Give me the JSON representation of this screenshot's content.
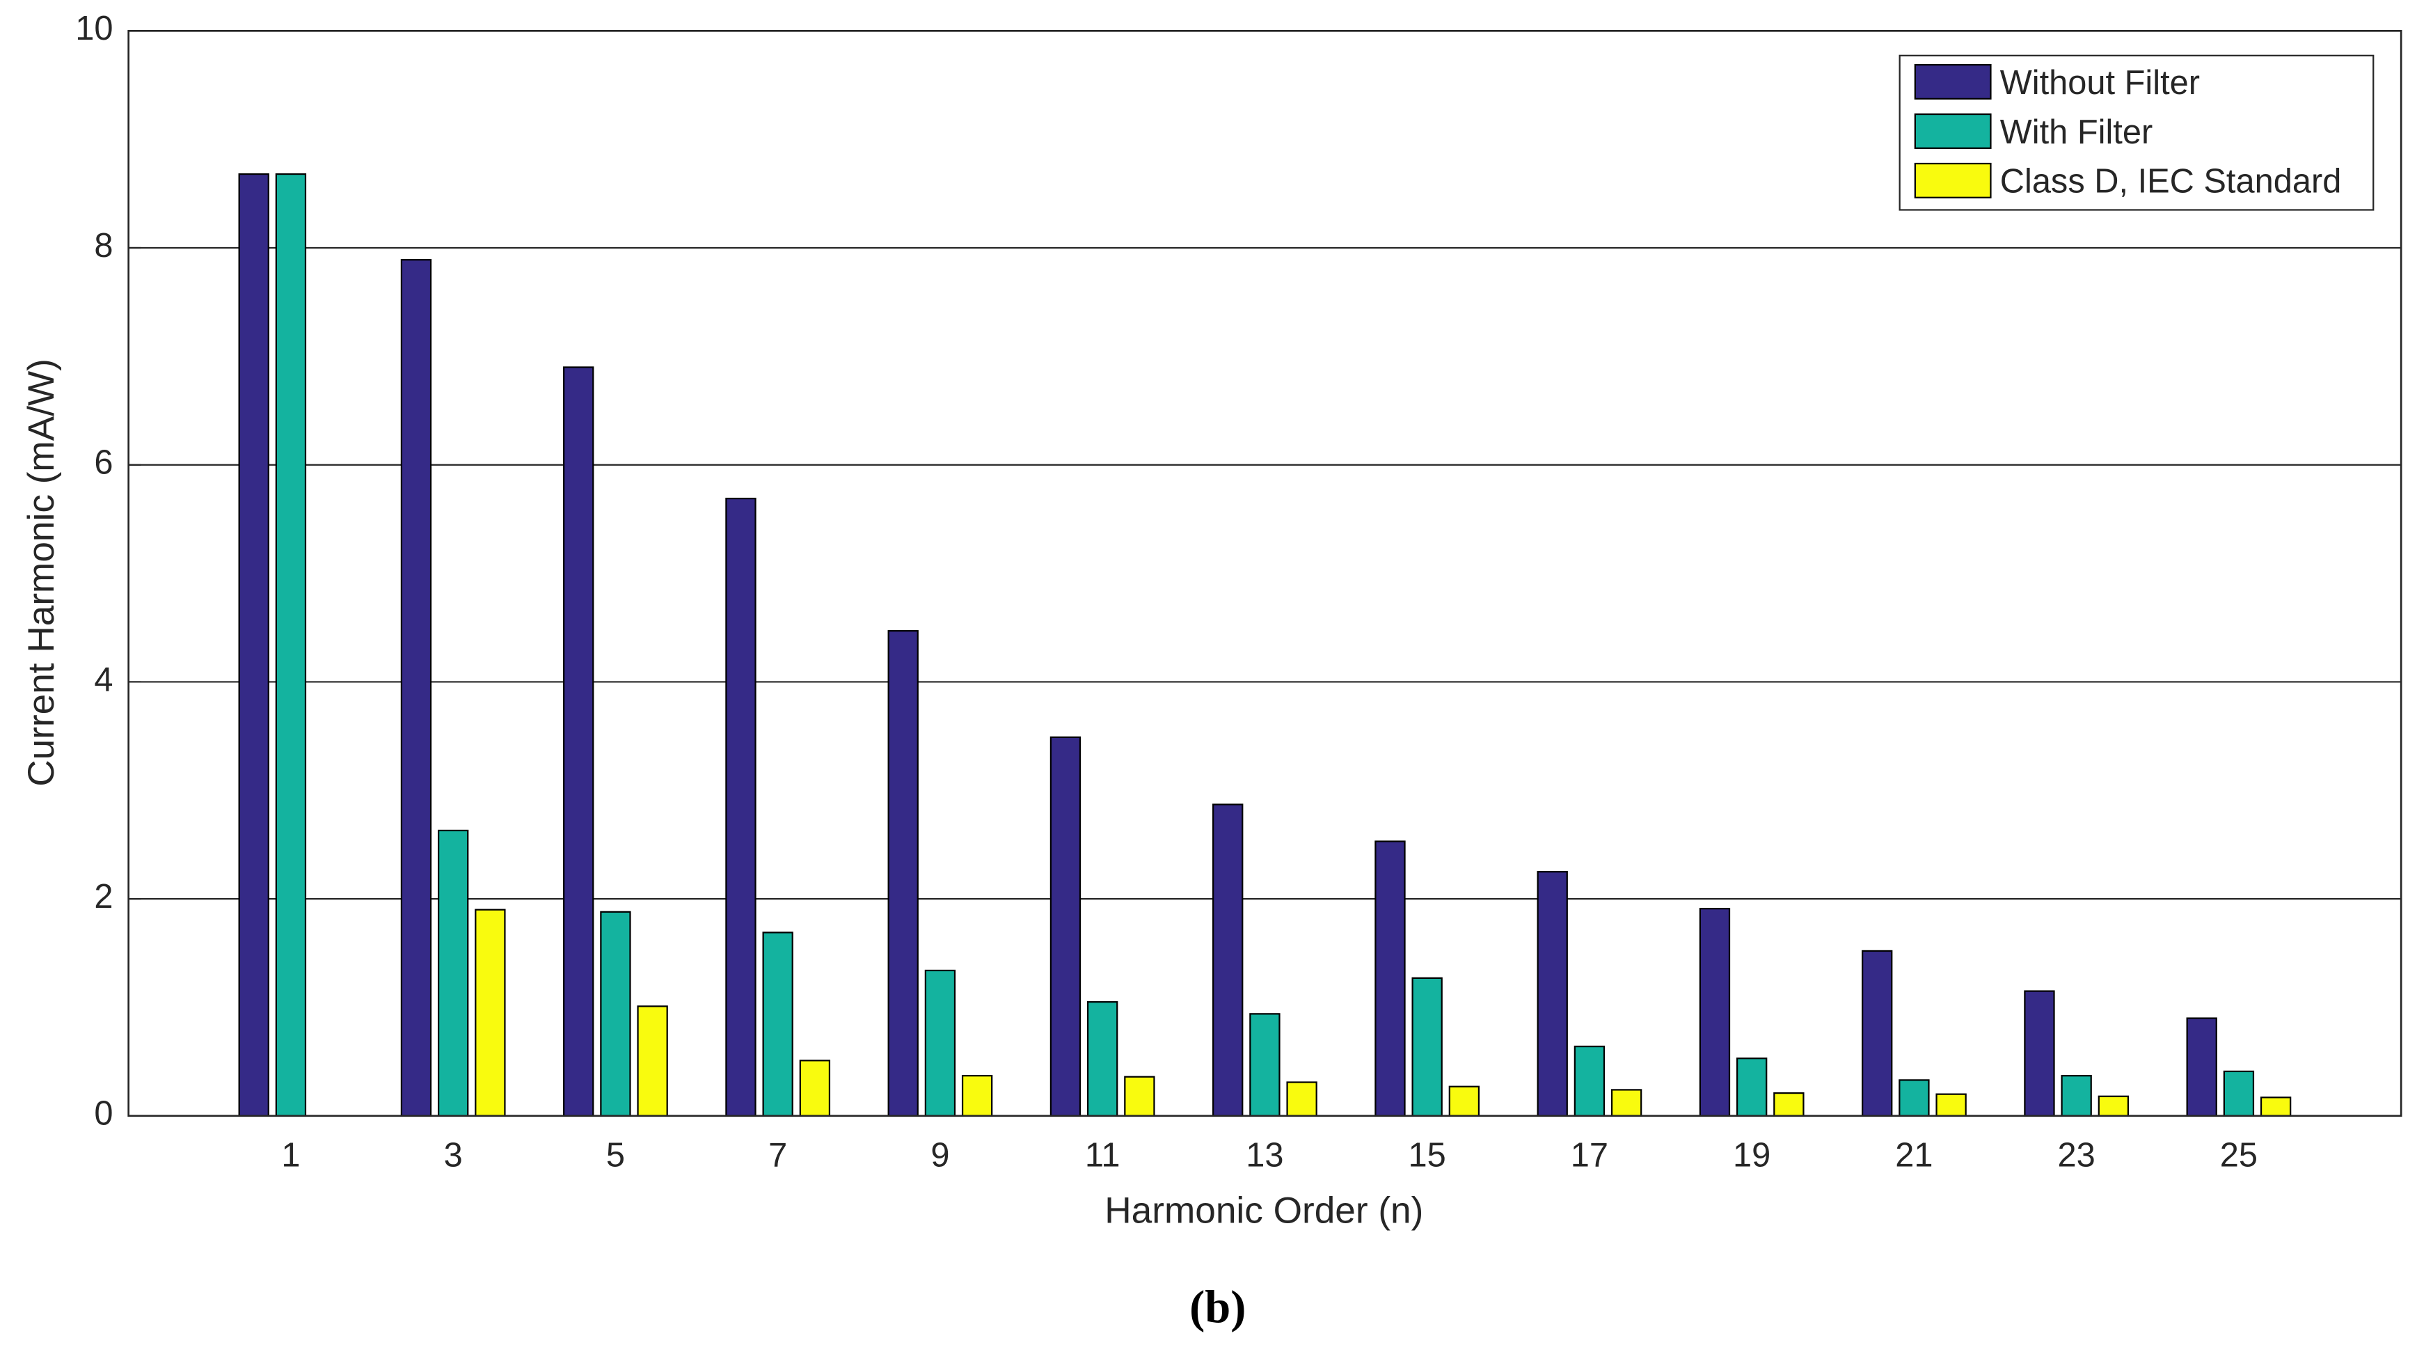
{
  "chart_data": {
    "type": "bar",
    "x_label": "Harmonic Order (n)",
    "y_label": "Current Harmonic (mA/W)",
    "caption": "(b)",
    "categories": [
      "1",
      "3",
      "5",
      "7",
      "9",
      "11",
      "13",
      "15",
      "17",
      "19",
      "21",
      "23",
      "25"
    ],
    "series": [
      {
        "name": "Without Filter",
        "color": "#352a87",
        "values": [
          8.68,
          7.89,
          6.9,
          5.69,
          4.47,
          3.49,
          2.87,
          2.53,
          2.25,
          1.91,
          1.52,
          1.15,
          0.9
        ]
      },
      {
        "name": "With Filter",
        "color": "#14b39f",
        "values": [
          8.68,
          2.63,
          1.88,
          1.69,
          1.34,
          1.05,
          0.94,
          1.27,
          0.64,
          0.53,
          0.33,
          0.37,
          0.41
        ]
      },
      {
        "name": "Class D, IEC Standard",
        "color": "#f9fb0e",
        "values": [
          null,
          1.9,
          1.01,
          0.51,
          0.37,
          0.36,
          0.31,
          0.27,
          0.24,
          0.21,
          0.2,
          0.18,
          0.17
        ]
      }
    ],
    "ylim": [
      0,
      10
    ],
    "yticks": [
      0,
      2,
      4,
      6,
      8,
      10
    ],
    "grid": true,
    "legend": "upper right"
  }
}
